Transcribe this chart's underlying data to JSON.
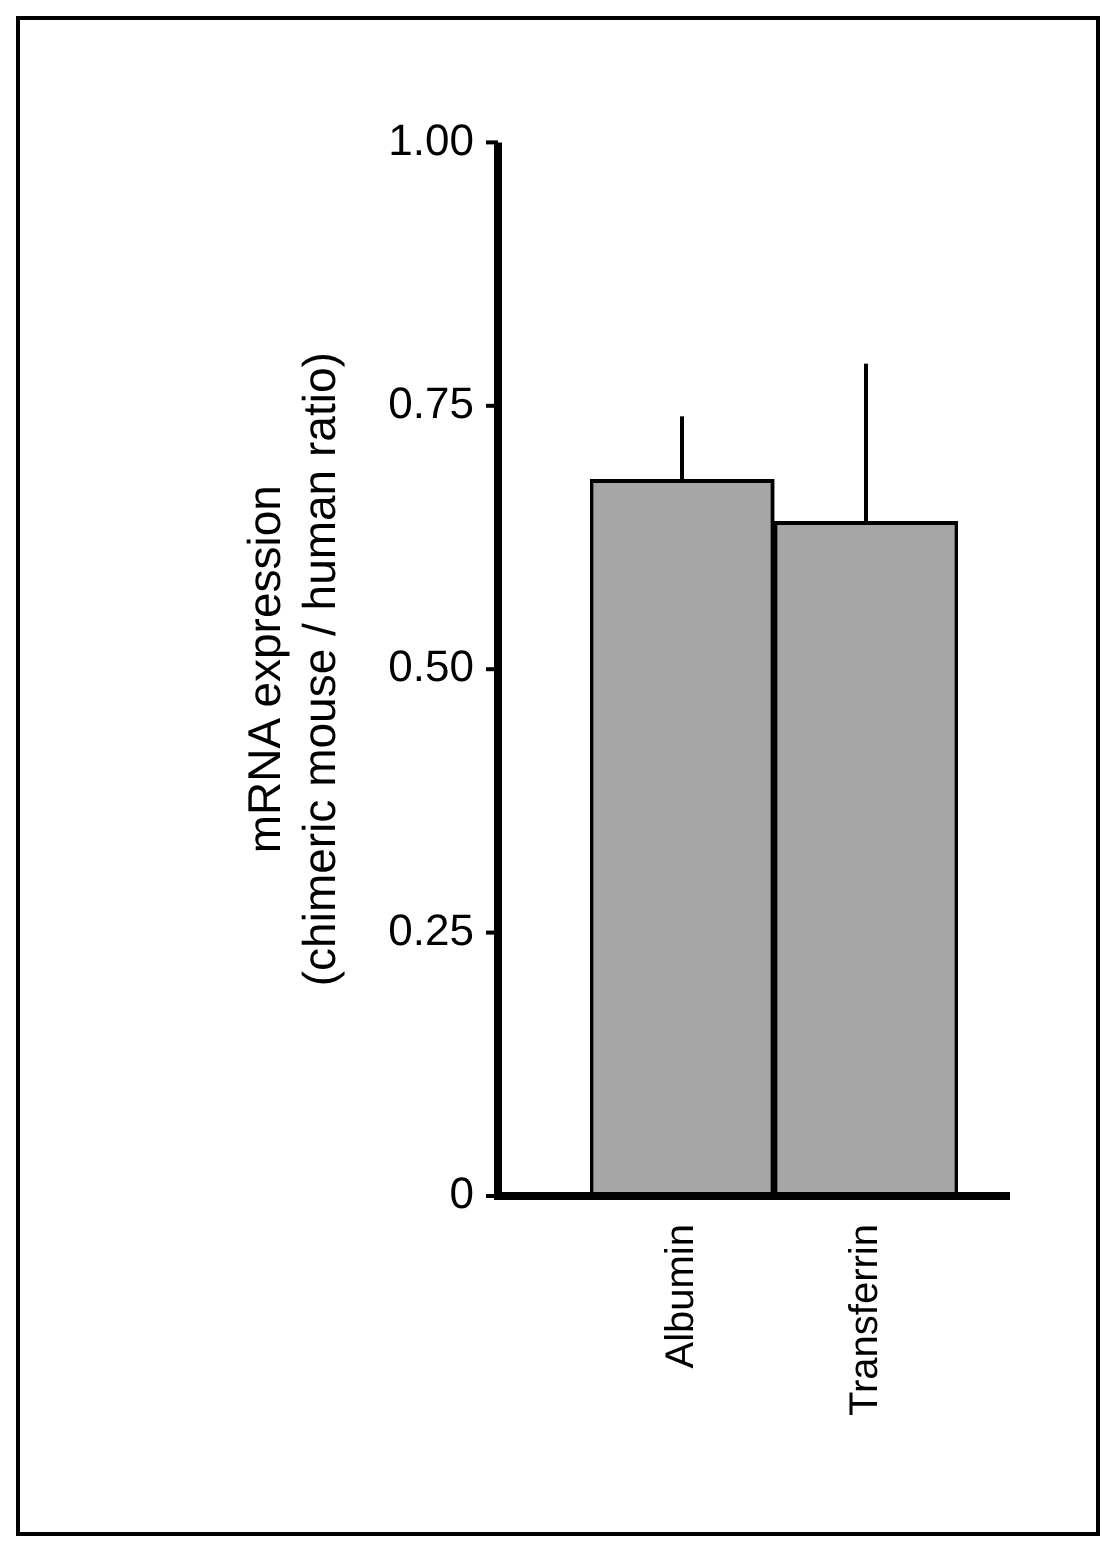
{
  "chart_data": {
    "type": "bar",
    "ylabel": "mRNA expression\n(chimeric mouse / human ratio)",
    "categories": [
      "Albumin",
      "Transferrin"
    ],
    "values": [
      0.68,
      0.64
    ],
    "errors": [
      [
        0.68,
        0.74
      ],
      [
        0.64,
        0.79
      ]
    ],
    "color": "#a6a6a6",
    "ylim": [
      0,
      1
    ],
    "yticks": [
      0,
      0.25,
      {
        "value": 0.5,
        "label": "0.50"
      },
      0.75,
      {
        "value": 1,
        "label": "1.00"
      }
    ],
    "grid": false,
    "legend": false
  }
}
